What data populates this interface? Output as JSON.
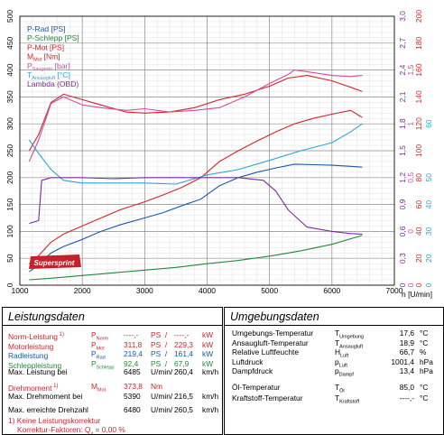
{
  "chart_data": {
    "type": "line",
    "xlabel": "n [U/min]",
    "x_ticks": [
      "1000",
      "2000",
      "3000",
      "4000",
      "5000",
      "6000",
      "7000"
    ],
    "xlim": [
      1000,
      7000
    ],
    "axes": [
      {
        "id": "power",
        "side": "left",
        "color": "#000000",
        "ylim": [
          0,
          500
        ],
        "ticks": [
          "0",
          "50",
          "100",
          "150",
          "200",
          "250",
          "300",
          "350",
          "400",
          "450",
          "500"
        ]
      },
      {
        "id": "lambda",
        "side": "right",
        "color": "#7a2a9a",
        "ylim": [
          0,
          500
        ],
        "ticks": [
          "0",
          "0,3",
          "0,6",
          "0,9",
          "1,2",
          "1,5",
          "1,8",
          "2,1",
          "2,4",
          "2,7",
          "3,0"
        ]
      },
      {
        "id": "boost",
        "side": "right",
        "color": "#d64aa0",
        "ylim": [
          0,
          500
        ],
        "ticks": [
          "0",
          "",
          "0",
          "",
          "0,5",
          "",
          "1",
          "",
          "1,5",
          "",
          ""
        ]
      },
      {
        "id": "torque_temp",
        "side": "right",
        "color": "#d2232a",
        "ylim": [
          0,
          500
        ],
        "ticks": [
          "0",
          "20",
          "40",
          "60",
          "80",
          "100",
          "120",
          "140",
          "160",
          "180",
          "200"
        ]
      },
      {
        "id": "temp2",
        "side": "right",
        "color": "#2aa7d6",
        "ylim": [
          0,
          500
        ],
        "ticks": [
          "0",
          "20",
          "30",
          "40",
          "50",
          "",
          "60",
          "",
          "",
          "",
          ""
        ]
      }
    ],
    "legend": {
      "placement": "top-left"
    },
    "legend_items": [
      {
        "label": "P-Rad [PS]",
        "color": "#1a55b0"
      },
      {
        "label": "P-Schlepp [PS]",
        "color": "#1f8a3a"
      },
      {
        "label": "P-Mot [PS]",
        "color": "#d2232a"
      },
      {
        "label": "M",
        "sub": "Mot",
        "tail": " [Nm]",
        "color": "#d2232a"
      },
      {
        "label": "P",
        "sub": "Saugrohr",
        "tail": " [bar]",
        "color": "#d64aa0"
      },
      {
        "label": "T",
        "sub": "Ansaugluft",
        "tail": " [°C]",
        "color": "#2aa7d6"
      },
      {
        "label": "Lambda (OBD)",
        "color": "#7a2a9a"
      }
    ],
    "series": [
      {
        "name": "P-Mot [PS]",
        "color": "#d2232a",
        "x": [
          1150,
          1300,
          1500,
          1700,
          2000,
          2300,
          2600,
          3000,
          3300,
          3600,
          3900,
          4200,
          4500,
          4800,
          5100,
          5400,
          5700,
          6000,
          6300,
          6485
        ],
        "y": [
          40,
          55,
          80,
          95,
          110,
          125,
          140,
          155,
          168,
          182,
          200,
          230,
          250,
          268,
          285,
          300,
          310,
          318,
          325,
          311.8
        ]
      },
      {
        "name": "P-Rad [PS]",
        "color": "#1a55b0",
        "x": [
          1150,
          1300,
          1500,
          1700,
          2000,
          2300,
          2600,
          3000,
          3300,
          3600,
          3900,
          4200,
          4500,
          4800,
          5100,
          5400,
          5700,
          6000,
          6300,
          6485
        ],
        "y": [
          25,
          38,
          60,
          72,
          85,
          100,
          112,
          125,
          135,
          148,
          160,
          185,
          200,
          210,
          218,
          225,
          224,
          223,
          221,
          219.4
        ]
      },
      {
        "name": "P-Schlepp [PS]",
        "color": "#1f8a3a",
        "x": [
          1150,
          1500,
          2000,
          2500,
          3000,
          3500,
          4000,
          4500,
          5000,
          5500,
          6000,
          6485
        ],
        "y": [
          10,
          13,
          18,
          23,
          28,
          33,
          40,
          46,
          54,
          64,
          76,
          92.4
        ]
      },
      {
        "name": "M Mot [Nm]",
        "color": "#d2232a",
        "x": [
          1150,
          1300,
          1500,
          1700,
          2000,
          2300,
          2700,
          3000,
          3400,
          3800,
          4200,
          4600,
          5000,
          5300,
          5600,
          6000,
          6300,
          6485
        ],
        "y": [
          250,
          280,
          340,
          355,
          345,
          335,
          322,
          320,
          322,
          330,
          345,
          355,
          370,
          385,
          390,
          380,
          368,
          360
        ]
      },
      {
        "name": "P Saugrohr [bar]",
        "color": "#d64aa0",
        "x": [
          1150,
          1300,
          1500,
          1700,
          2000,
          2300,
          2700,
          3000,
          3400,
          3800,
          4200,
          4600,
          5000,
          5300,
          5400,
          5600,
          6000,
          6300,
          6485
        ],
        "y": [
          230,
          270,
          338,
          350,
          335,
          330,
          325,
          328,
          322,
          325,
          330,
          350,
          375,
          392,
          400,
          397,
          390,
          388,
          390
        ]
      },
      {
        "name": "T Ansaugluft [°C]",
        "color": "#2aa7d6",
        "x": [
          1150,
          1300,
          1500,
          1700,
          2000,
          2500,
          3000,
          3500,
          4000,
          4500,
          5000,
          5500,
          6000,
          6300,
          6485
        ],
        "y": [
          270,
          245,
          215,
          195,
          190,
          190,
          190,
          188,
          205,
          215,
          232,
          250,
          265,
          285,
          300
        ]
      },
      {
        "name": "Lambda (OBD)",
        "color": "#7a2a9a",
        "x": [
          1150,
          1300,
          1350,
          1500,
          2000,
          2500,
          3000,
          3500,
          4000,
          4500,
          4900,
          5100,
          5300,
          5600,
          6000,
          6300,
          6485
        ],
        "y": [
          115,
          120,
          195,
          200,
          200,
          198,
          200,
          200,
          200,
          200,
          195,
          175,
          140,
          108,
          100,
          96,
          95
        ]
      }
    ]
  },
  "brand": {
    "logo_text": "Supersprint"
  },
  "leistungsdaten": {
    "title": "Leistungsdaten",
    "rows": [
      {
        "label": "Norm-Leistung",
        "sup": " 1)",
        "sym": "P",
        "sub": "Norm",
        "v1": "----,-",
        "u1": "PS",
        "v2": "----,-",
        "u2": "kW"
      },
      {
        "label": "Motorleistung",
        "sup": "",
        "sym": "P",
        "sub": "Mot",
        "v1": "311,8",
        "u1": "PS",
        "v2": "229,3",
        "u2": "kW"
      },
      {
        "label": "Radleistung",
        "sup": "",
        "sym": "P",
        "sub": "Rad",
        "v1": "219,4",
        "u1": "PS",
        "v2": "161,4",
        "u2": "kW"
      },
      {
        "label": "Schleppleistung",
        "sup": "",
        "sym": "P",
        "sub": "Schlepp",
        "v1": "92,4",
        "u1": "PS",
        "v2": "67,9",
        "u2": "kW"
      }
    ],
    "max_leistung_bei": {
      "label": "Max. Leistung bei",
      "v1": "6485",
      "u1": "U/min/",
      "v2": "260,4",
      "u2": "km/h"
    },
    "drehmoment": {
      "label": "Drehmoment",
      "sup": " 1)",
      "sym": "M",
      "sub": "Mot",
      "v1": "373,8",
      "u1": "Nm"
    },
    "max_drehmoment_bei": {
      "label": "Max. Drehmoment bei",
      "v1": "5390",
      "u1": "U/min/",
      "v2": "216,5",
      "u2": "km/h"
    },
    "max_drehzahl": {
      "label": "Max. erreichte Drehzahl",
      "v1": "6480",
      "u1": "U/min/",
      "v2": "260,5",
      "u2": "km/h"
    },
    "footnote1": "1) Keine Leistungskorrektur",
    "footnote2_pre": "Korrektur-Faktoren: Q",
    "footnote2_sub": "y",
    "footnote2_post": " =   0,00 %"
  },
  "umgebung": {
    "title": "Umgebungsdaten",
    "rows": [
      {
        "label": "Umgebungs-Temperatur",
        "sym": "T",
        "sub": "Umgebung",
        "value": "17,6",
        "unit": "°C"
      },
      {
        "label": "Ansaugluft-Temperatur",
        "sym": "T",
        "sub": "Ansaugluft",
        "value": "18,9",
        "unit": "°C"
      },
      {
        "label": "Relative Luftfeuchte",
        "sym": "H",
        "sub": "Luft",
        "value": "66,7",
        "unit": "%"
      },
      {
        "label": "Luftdruck",
        "sym": "p",
        "sub": "Luft",
        "value": "1001,4",
        "unit": "hPa"
      },
      {
        "label": "Dampfdruck",
        "sym": "p",
        "sub": "Dampf",
        "value": "13,4",
        "unit": "hPa"
      },
      {
        "label": "Öl-Temperatur",
        "sym": "T",
        "sub": "Öl",
        "value": "85,0",
        "unit": "°C"
      },
      {
        "label": "Kraftstoff-Temperatur",
        "sym": "T",
        "sub": "Kraftstoff",
        "value": "----,-",
        "unit": "°C"
      }
    ]
  }
}
